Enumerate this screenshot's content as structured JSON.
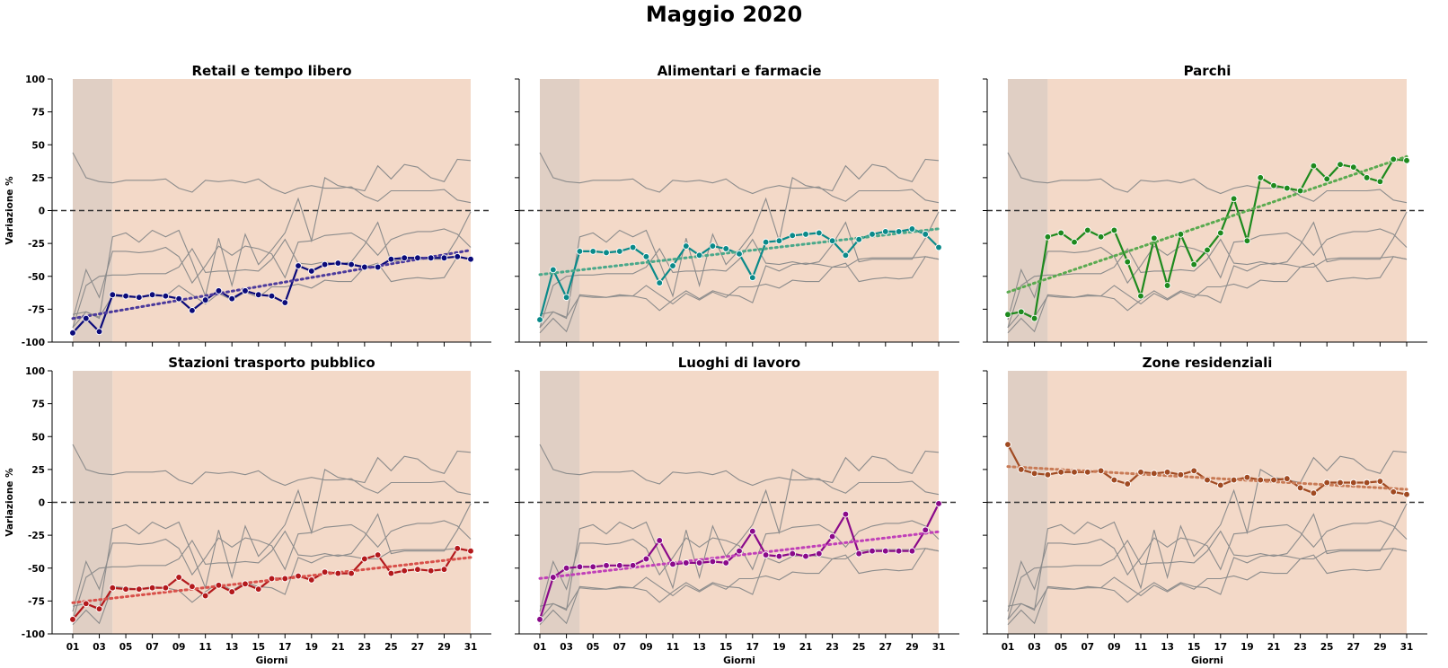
{
  "figure": {
    "title": "Maggio 2020"
  },
  "chart_data": {
    "type": "line",
    "xlabel": "Giorni",
    "ylabel": "Variazione %",
    "ylim": [
      -100,
      100
    ],
    "yticks": [
      -100,
      -75,
      -50,
      -25,
      0,
      25,
      50,
      75,
      100
    ],
    "xticks": [
      "01",
      "03",
      "05",
      "07",
      "09",
      "11",
      "13",
      "15",
      "17",
      "19",
      "21",
      "23",
      "25",
      "27",
      "29",
      "31"
    ],
    "days": [
      1,
      2,
      3,
      4,
      5,
      6,
      7,
      8,
      9,
      10,
      11,
      12,
      13,
      14,
      15,
      16,
      17,
      18,
      19,
      20,
      21,
      22,
      23,
      24,
      25,
      26,
      27,
      28,
      29,
      30,
      31
    ],
    "highlight_spans": [
      {
        "from": 1,
        "to": 4,
        "color": "#e0cfc4"
      },
      {
        "from": 4,
        "to": 31,
        "color": "#f3d9c8"
      }
    ],
    "reference_line": 0,
    "panels": [
      {
        "title": "Retail e tempo libero",
        "color": "#0b0b7a",
        "trend_color": "#4b3a9c",
        "key": "retail"
      },
      {
        "title": "Alimentari e farmacie",
        "color": "#0a8a8a",
        "trend_color": "#4aa88a",
        "key": "grocery"
      },
      {
        "title": "Parchi",
        "color": "#1e8a1e",
        "trend_color": "#5aaa50",
        "key": "parks"
      },
      {
        "title": "Stazioni trasporto pubblico",
        "color": "#b3191c",
        "trend_color": "#d8504a",
        "key": "transit"
      },
      {
        "title": "Luoghi di lavoro",
        "color": "#8a0a8a",
        "trend_color": "#c040b8",
        "key": "workplaces"
      },
      {
        "title": "Zone residenziali",
        "color": "#a04a22",
        "trend_color": "#c87a55",
        "key": "residential"
      }
    ],
    "series": {
      "retail": [
        -93,
        -82,
        -92,
        -64,
        -65,
        -66,
        -64,
        -65,
        -67,
        -76,
        -68,
        -61,
        -67,
        -61,
        -64,
        -65,
        -70,
        -42,
        -46,
        -41,
        -40,
        -41,
        -43,
        -43,
        -37,
        -36,
        -36,
        -36,
        -36,
        -35,
        -37
      ],
      "grocery": [
        -83,
        -45,
        -66,
        -31,
        -31,
        -32,
        -31,
        -28,
        -35,
        -55,
        -42,
        -27,
        -34,
        -27,
        -29,
        -33,
        -51,
        -24,
        -23,
        -19,
        -18,
        -17,
        -23,
        -34,
        -22,
        -18,
        -16,
        -16,
        -14,
        -18,
        -28
      ],
      "parks": [
        -79,
        -77,
        -82,
        -20,
        -17,
        -24,
        -15,
        -20,
        -15,
        -39,
        -65,
        -21,
        -57,
        -18,
        -41,
        -30,
        -17,
        9,
        -23,
        25,
        19,
        17,
        15,
        34,
        24,
        35,
        33,
        25,
        22,
        39,
        38
      ],
      "transit": [
        -89,
        -77,
        -81,
        -65,
        -66,
        -66,
        -65,
        -65,
        -57,
        -64,
        -71,
        -63,
        -68,
        -62,
        -66,
        -58,
        -58,
        -56,
        -59,
        -53,
        -54,
        -54,
        -43,
        -40,
        -54,
        -52,
        -51,
        -52,
        -51,
        -35,
        -37
      ],
      "workplaces": [
        -89,
        -57,
        -50,
        -49,
        -49,
        -48,
        -48,
        -48,
        -43,
        -29,
        -47,
        -46,
        -46,
        -45,
        -46,
        -37,
        -22,
        -40,
        -41,
        -39,
        -41,
        -39,
        -26,
        -9,
        -39,
        -37,
        -37,
        -37,
        -37,
        -21,
        -1
      ],
      "residential": [
        44,
        25,
        22,
        21,
        23,
        23,
        23,
        24,
        17,
        14,
        23,
        22,
        23,
        21,
        24,
        17,
        13,
        17,
        19,
        17,
        17,
        18,
        11,
        7,
        15,
        15,
        15,
        15,
        16,
        8,
        6
      ]
    }
  }
}
